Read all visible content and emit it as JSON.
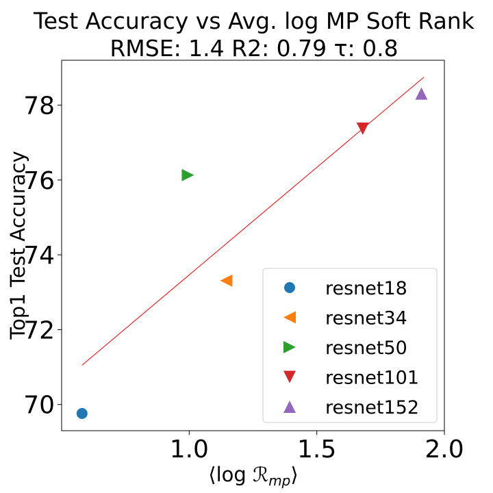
{
  "chart_data": {
    "type": "scatter",
    "title_line1": "Test Accuracy vs Avg. log MP Soft Rank",
    "title_line2": "RMSE: 1.4 R2: 0.79 τ: 0.8",
    "xlabel": "⟨log ℛ",
    "xlabel_sub": "mp",
    "xlabel_end": "⟩",
    "ylabel": "Top1 Test Accuracy",
    "xlim": [
      0.5,
      2.0
    ],
    "ylim": [
      69.3,
      79.2
    ],
    "xticks": [
      1.0,
      1.5,
      2.0
    ],
    "xtick_labels": [
      "1.0",
      "1.5",
      "2.0"
    ],
    "yticks": [
      70,
      72,
      74,
      76,
      78
    ],
    "ytick_labels": [
      "70",
      "72",
      "74",
      "76",
      "78"
    ],
    "grid": false,
    "legend_position": "lower-right",
    "series": [
      {
        "name": "resnet18",
        "marker": "circle",
        "color": "#1f77b4",
        "x": 0.58,
        "y": 69.76
      },
      {
        "name": "resnet34",
        "marker": "triangle-left",
        "color": "#ff7f0e",
        "x": 1.145,
        "y": 73.31
      },
      {
        "name": "resnet50",
        "marker": "triangle-right",
        "color": "#2ca02c",
        "x": 0.995,
        "y": 76.13
      },
      {
        "name": "resnet101",
        "marker": "triangle-down",
        "color": "#d62728",
        "x": 1.68,
        "y": 77.37
      },
      {
        "name": "resnet152",
        "marker": "triangle-up",
        "color": "#9467bd",
        "x": 1.91,
        "y": 78.31
      }
    ],
    "fit_line": {
      "color": "#ff0000",
      "x": [
        0.58,
        1.92
      ],
      "y": [
        71.05,
        78.75
      ]
    }
  }
}
